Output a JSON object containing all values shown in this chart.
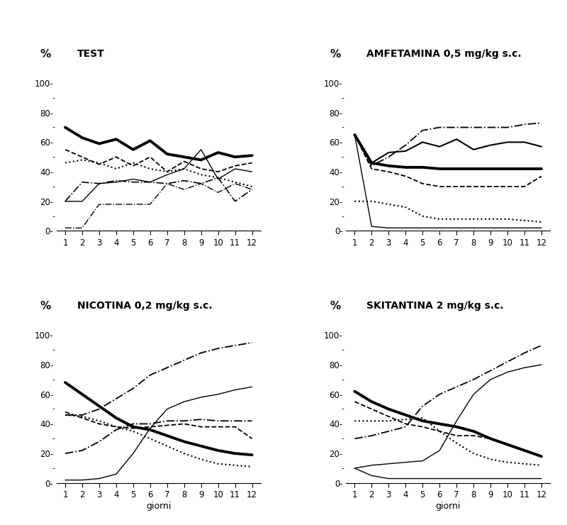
{
  "x": [
    1,
    2,
    3,
    4,
    5,
    6,
    7,
    8,
    9,
    10,
    11,
    12
  ],
  "panels": [
    {
      "title": "TEST",
      "lines": [
        {
          "y": [
            70,
            63,
            59,
            62,
            55,
            61,
            52,
            50,
            48,
            53,
            50,
            51
          ],
          "style": "solid",
          "lw": 2.8,
          "dash": null
        },
        {
          "y": [
            55,
            50,
            45,
            50,
            44,
            50,
            40,
            47,
            42,
            40,
            44,
            46
          ],
          "style": "dashed",
          "lw": 1.3,
          "dash": [
            6,
            3
          ]
        },
        {
          "y": [
            46,
            48,
            46,
            42,
            46,
            42,
            40,
            42,
            38,
            36,
            33,
            30
          ],
          "style": "dotted",
          "lw": 1.5,
          "dash": null
        },
        {
          "y": [
            20,
            20,
            32,
            33,
            35,
            33,
            38,
            42,
            55,
            35,
            42,
            40
          ],
          "style": "solid",
          "lw": 1.0,
          "dash": null
        },
        {
          "y": [
            20,
            33,
            32,
            34,
            33,
            33,
            32,
            34,
            32,
            36,
            20,
            28
          ],
          "style": "dashdot",
          "lw": 1.2,
          "dash": null
        },
        {
          "y": [
            2,
            2,
            18,
            18,
            18,
            18,
            32,
            28,
            32,
            26,
            32,
            28
          ],
          "style": "dashdot",
          "lw": 1.0,
          "dash": [
            8,
            3,
            2,
            3
          ]
        }
      ]
    },
    {
      "title": "AMFETAMINA 0,5 mg/kg s.c.",
      "lines": [
        {
          "y": [
            65,
            46,
            53,
            54,
            60,
            57,
            62,
            55,
            58,
            60,
            60,
            57
          ],
          "style": "solid",
          "lw": 1.5,
          "dash": null
        },
        {
          "y": [
            65,
            42,
            40,
            37,
            32,
            30,
            30,
            30,
            30,
            30,
            30,
            37
          ],
          "style": "dashed",
          "lw": 1.3,
          "dash": [
            6,
            3
          ]
        },
        {
          "y": [
            65,
            44,
            50,
            58,
            68,
            70,
            70,
            70,
            70,
            70,
            72,
            73
          ],
          "style": "dashdot",
          "lw": 1.3,
          "dash": null
        },
        {
          "y": [
            65,
            46,
            44,
            43,
            43,
            42,
            42,
            42,
            42,
            42,
            42,
            42
          ],
          "style": "solid",
          "lw": 2.8,
          "dash": null
        },
        {
          "y": [
            20,
            20,
            18,
            16,
            10,
            8,
            8,
            8,
            8,
            8,
            7,
            6
          ],
          "style": "dotted",
          "lw": 1.5,
          "dash": null
        },
        {
          "y": [
            65,
            3,
            2,
            2,
            2,
            2,
            2,
            2,
            2,
            2,
            2,
            2
          ],
          "style": "solid",
          "lw": 1.0,
          "dash": null
        }
      ]
    },
    {
      "title": "NICOTINA 0,2 mg/kg s.c.",
      "lines": [
        {
          "y": [
            68,
            60,
            52,
            44,
            38,
            36,
            32,
            28,
            25,
            22,
            20,
            19
          ],
          "style": "solid",
          "lw": 2.8,
          "dash": null
        },
        {
          "y": [
            48,
            44,
            40,
            38,
            37,
            38,
            39,
            40,
            38,
            38,
            38,
            30
          ],
          "style": "dashed",
          "lw": 1.3,
          "dash": [
            6,
            3
          ]
        },
        {
          "y": [
            46,
            45,
            42,
            38,
            35,
            30,
            25,
            20,
            16,
            13,
            12,
            11
          ],
          "style": "dotted",
          "lw": 1.5,
          "dash": null
        },
        {
          "y": [
            20,
            22,
            28,
            36,
            40,
            40,
            42,
            42,
            43,
            42,
            42,
            42
          ],
          "style": "dashdot",
          "lw": 1.3,
          "dash": null
        },
        {
          "y": [
            2,
            2,
            3,
            6,
            20,
            37,
            50,
            55,
            58,
            60,
            63,
            65
          ],
          "style": "solid",
          "lw": 1.0,
          "dash": null
        },
        {
          "y": [
            46,
            46,
            50,
            57,
            64,
            73,
            78,
            83,
            88,
            91,
            93,
            95
          ],
          "style": "dashdot",
          "lw": 1.3,
          "dash": [
            8,
            3,
            2,
            3
          ]
        }
      ]
    },
    {
      "title": "SKITANTINA 2 mg/kg s.c.",
      "lines": [
        {
          "y": [
            62,
            55,
            50,
            46,
            42,
            40,
            38,
            35,
            30,
            26,
            22,
            18
          ],
          "style": "solid",
          "lw": 2.8,
          "dash": null
        },
        {
          "y": [
            55,
            50,
            45,
            40,
            38,
            35,
            32,
            32,
            30,
            26,
            22,
            18
          ],
          "style": "dashed",
          "lw": 1.3,
          "dash": [
            6,
            3
          ]
        },
        {
          "y": [
            30,
            32,
            35,
            38,
            52,
            60,
            65,
            70,
            76,
            82,
            88,
            93
          ],
          "style": "dashdot",
          "lw": 1.3,
          "dash": null
        },
        {
          "y": [
            42,
            42,
            42,
            43,
            44,
            35,
            27,
            20,
            16,
            14,
            13,
            12
          ],
          "style": "dotted",
          "lw": 1.5,
          "dash": null
        },
        {
          "y": [
            10,
            12,
            13,
            14,
            15,
            22,
            42,
            60,
            70,
            75,
            78,
            80
          ],
          "style": "solid",
          "lw": 1.0,
          "dash": null
        },
        {
          "y": [
            10,
            5,
            3,
            3,
            3,
            3,
            3,
            3,
            3,
            3,
            3,
            3
          ],
          "style": "solid",
          "lw": 1.0,
          "dash": null
        }
      ]
    }
  ],
  "background_color": "#ffffff",
  "line_color": "#000000",
  "figsize": [
    8.0,
    7.4
  ],
  "dpi": 100
}
